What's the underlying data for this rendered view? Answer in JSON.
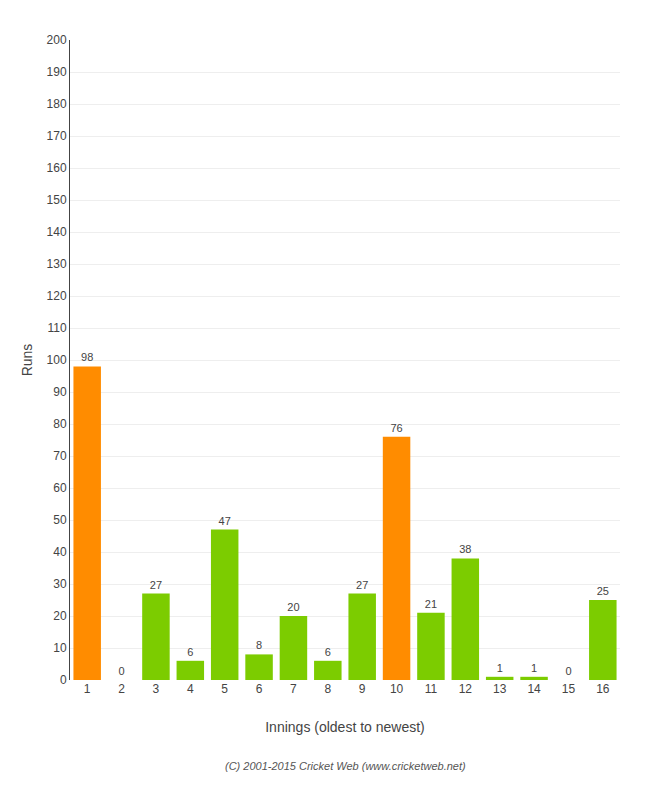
{
  "chart_data": {
    "type": "bar",
    "categories": [
      "1",
      "2",
      "3",
      "4",
      "5",
      "6",
      "7",
      "8",
      "9",
      "10",
      "11",
      "12",
      "13",
      "14",
      "15",
      "16"
    ],
    "values": [
      98,
      0,
      27,
      6,
      47,
      8,
      20,
      6,
      27,
      76,
      21,
      38,
      1,
      1,
      0,
      25
    ],
    "colors": [
      "#ff8c00",
      "#7ccc00",
      "#7ccc00",
      "#7ccc00",
      "#7ccc00",
      "#7ccc00",
      "#7ccc00",
      "#7ccc00",
      "#7ccc00",
      "#ff8c00",
      "#7ccc00",
      "#7ccc00",
      "#7ccc00",
      "#7ccc00",
      "#7ccc00",
      "#7ccc00"
    ],
    "xlabel": "Innings (oldest to newest)",
    "ylabel": "Runs",
    "ylim": [
      0,
      200
    ],
    "yticks": [
      0,
      10,
      20,
      30,
      40,
      50,
      60,
      70,
      80,
      90,
      100,
      110,
      120,
      130,
      140,
      150,
      160,
      170,
      180,
      190,
      200
    ],
    "grid": true,
    "data_labels": true,
    "annotations": [
      "(C) 2001-2015 Cricket Web (www.cricketweb.net)"
    ]
  }
}
